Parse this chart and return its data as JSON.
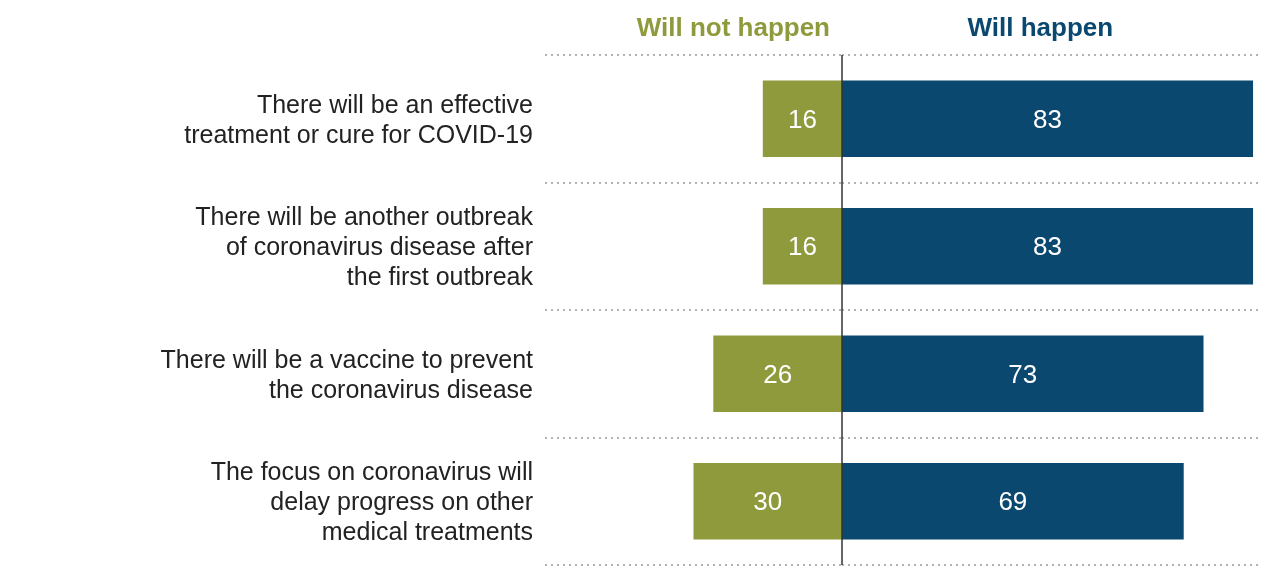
{
  "chart_data": [
    {
      "type": "bar",
      "orientation": "horizontal",
      "categories": [
        "There will be an effective\ntreatment or cure for COVID-19",
        "There will be another outbreak\nof coronavirus disease after\nthe first outbreak",
        "There will be a vaccine to prevent\nthe coronavirus disease",
        "The focus on coronavirus will\ndelay progress on other\nmedical treatments"
      ],
      "series": [
        {
          "name": "Will not happen",
          "color": "#8f9a3c",
          "values": [
            16,
            16,
            26,
            30
          ]
        }
      ],
      "xlim": [
        60,
        0
      ],
      "tick_labels": "y",
      "grid": "y",
      "legend": false,
      "data_labels": true
    },
    {
      "type": "bar",
      "orientation": "horizontal",
      "categories": [
        null,
        null,
        null,
        null
      ],
      "series": [
        {
          "name": "Will happen",
          "color": "#0b4870",
          "values": [
            83,
            83,
            73,
            69
          ]
        }
      ],
      "xlim": [
        0,
        84
      ],
      "tick_labels": false,
      "grid": "y",
      "legend": false,
      "data_labels": true,
      "ref_lines": [
        {
          "axis": "x",
          "value": 0
        }
      ]
    }
  ]
}
